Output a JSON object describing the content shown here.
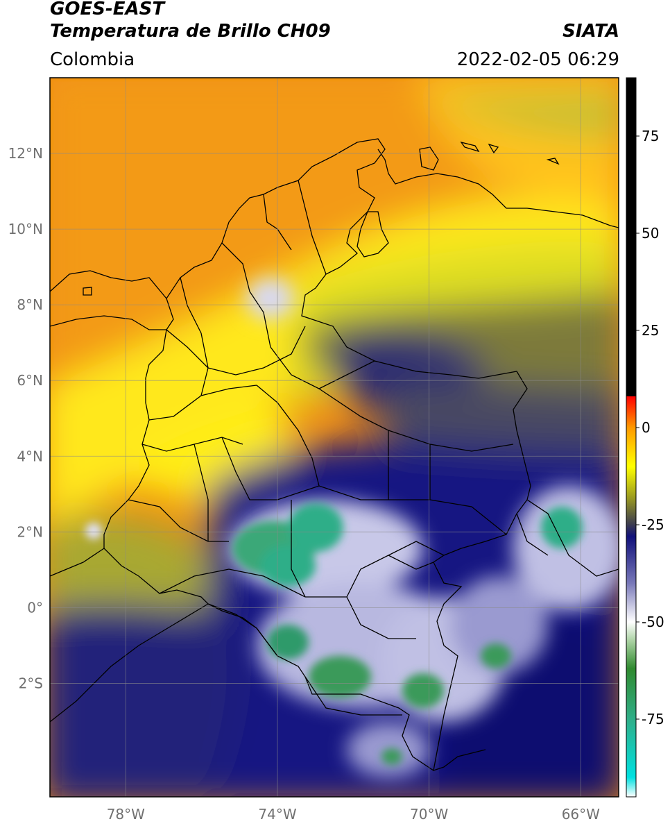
{
  "header": {
    "title_line1": "GOES-EAST",
    "title_line2": "Temperatura de Brillo CH09",
    "brand": "SIATA",
    "region": "Colombia",
    "timestamp": "2022-02-05 06:29"
  },
  "map": {
    "lat_range": [
      -5.0,
      14.0
    ],
    "lon_range": [
      -80.0,
      -65.0
    ],
    "lat_ticks": [
      {
        "value": 12,
        "label": "12°N"
      },
      {
        "value": 10,
        "label": "10°N"
      },
      {
        "value": 8,
        "label": "8°N"
      },
      {
        "value": 6,
        "label": "6°N"
      },
      {
        "value": 4,
        "label": "4°N"
      },
      {
        "value": 2,
        "label": "2°N"
      },
      {
        "value": 0,
        "label": "0°"
      },
      {
        "value": -2,
        "label": "2°S"
      }
    ],
    "lon_ticks": [
      {
        "value": -78,
        "label": "78°W"
      },
      {
        "value": -74,
        "label": "74°W"
      },
      {
        "value": -70,
        "label": "70°W"
      },
      {
        "value": -66,
        "label": "66°W"
      }
    ],
    "gridlines": true
  },
  "colorbar": {
    "range": [
      -95,
      90
    ],
    "ticks": [
      {
        "value": 75,
        "label": "75"
      },
      {
        "value": 50,
        "label": "50"
      },
      {
        "value": 25,
        "label": "25"
      },
      {
        "value": 0,
        "label": "0"
      },
      {
        "value": -25,
        "label": "-25"
      },
      {
        "value": -50,
        "label": "-50"
      },
      {
        "value": -75,
        "label": "-75"
      }
    ],
    "stops": [
      {
        "value": -95,
        "color": "#ffffff"
      },
      {
        "value": -90,
        "color": "#00e0e0"
      },
      {
        "value": -75,
        "color": "#2fae88"
      },
      {
        "value": -62,
        "color": "#2f8a2f"
      },
      {
        "value": -55,
        "color": "#a8d0a0"
      },
      {
        "value": -50,
        "color": "#ffffff"
      },
      {
        "value": -40,
        "color": "#7878b8"
      },
      {
        "value": -28,
        "color": "#10107a"
      },
      {
        "value": -25,
        "color": "#3a3a50"
      },
      {
        "value": -18,
        "color": "#9a9a20"
      },
      {
        "value": -10,
        "color": "#ffff00"
      },
      {
        "value": 0,
        "color": "#ff9a00"
      },
      {
        "value": 8,
        "color": "#ff0000"
      },
      {
        "value": 8.01,
        "color": "#000000"
      },
      {
        "value": 90,
        "color": "#000000"
      }
    ]
  }
}
